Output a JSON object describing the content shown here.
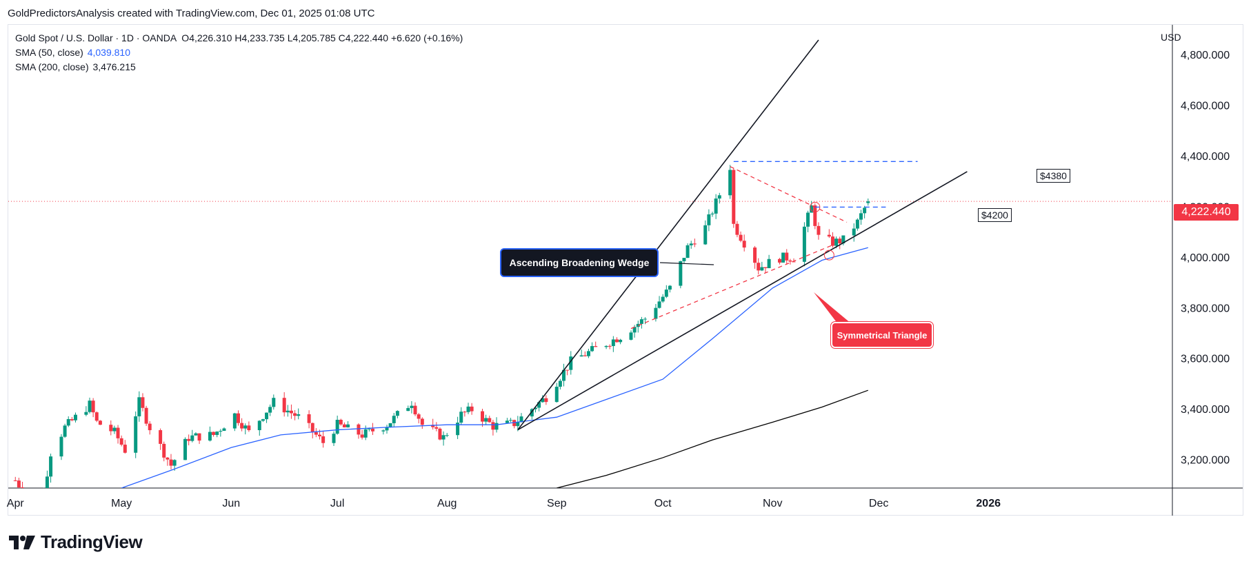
{
  "caption": "GoldPredictorsAnalysis created with TradingView.com, Dec 01, 2025 01:08 UTC",
  "legend": {
    "symbol": "Gold Spot / U.S. Dollar · 1D · OANDA",
    "open_label": "O",
    "open": "4,226.310",
    "high_label": "H",
    "high": "4,233.735",
    "low_label": "L",
    "low": "4,205.785",
    "close_label": "C",
    "close": "4,222.440",
    "change": "+6.620 (+0.16%)",
    "sma50_label": "SMA (50, close)",
    "sma50_value": "4,039.810",
    "sma200_label": "SMA (200, close)",
    "sma200_value": "3,476.215"
  },
  "currency": "USD",
  "last_price_label": "4,222.440",
  "annotations": {
    "wedge": "Ascending Broadening Wedge",
    "triangle": "Symmetrical Triangle",
    "target_high": "$4380",
    "target_mid": "$4200"
  },
  "brand": "TradingView",
  "colors": {
    "up": "#089981",
    "down": "#f23645",
    "sma50": "#2962ff",
    "sma200": "#000000",
    "dashed_blue": "#2962ff",
    "dashed_red": "#f23645"
  },
  "chart_data": {
    "type": "candlestick",
    "title": "Gold Spot / U.S. Dollar · 1D · OANDA",
    "x_tick_labels": [
      "Apr",
      "May",
      "Jun",
      "Jul",
      "Aug",
      "Sep",
      "Oct",
      "Nov",
      "Dec",
      "2026"
    ],
    "x_ticks": [
      "2025-04-01",
      "2025-05-01",
      "2025-06-01",
      "2025-07-01",
      "2025-08-01",
      "2025-09-01",
      "2025-10-01",
      "2025-11-01",
      "2025-12-01",
      "2026-01-01"
    ],
    "y_tick_labels": [
      "3,200.000",
      "3,400.000",
      "3,600.000",
      "3,800.000",
      "4,000.000",
      "4,200.000",
      "4,400.000",
      "4,600.000",
      "4,800.000"
    ],
    "y_ticks": [
      3200,
      3400,
      3600,
      3800,
      4000,
      4200,
      4400,
      4600,
      4800
    ],
    "ylim": [
      3090,
      4920
    ],
    "xlim": [
      "2025-03-30",
      "2026-02-22"
    ],
    "series_close": [
      [
        "2025-04-01",
        3120
      ],
      [
        "2025-04-08",
        3000
      ],
      [
        "2025-04-11",
        3230
      ],
      [
        "2025-04-15",
        3330
      ],
      [
        "2025-04-22",
        3420
      ],
      [
        "2025-04-24",
        3350
      ],
      [
        "2025-04-29",
        3310
      ],
      [
        "2025-05-02",
        3240
      ],
      [
        "2025-05-06",
        3430
      ],
      [
        "2025-05-09",
        3330
      ],
      [
        "2025-05-15",
        3180
      ],
      [
        "2025-05-20",
        3290
      ],
      [
        "2025-05-27",
        3300
      ],
      [
        "2025-06-02",
        3380
      ],
      [
        "2025-06-06",
        3310
      ],
      [
        "2025-06-13",
        3430
      ],
      [
        "2025-06-20",
        3370
      ],
      [
        "2025-06-27",
        3270
      ],
      [
        "2025-07-01",
        3340
      ],
      [
        "2025-07-08",
        3300
      ],
      [
        "2025-07-15",
        3340
      ],
      [
        "2025-07-22",
        3430
      ],
      [
        "2025-07-25",
        3340
      ],
      [
        "2025-07-31",
        3290
      ],
      [
        "2025-08-05",
        3380
      ],
      [
        "2025-08-08",
        3400
      ],
      [
        "2025-08-14",
        3335
      ],
      [
        "2025-08-20",
        3345
      ],
      [
        "2025-08-29",
        3450
      ],
      [
        "2025-09-05",
        3590
      ],
      [
        "2025-09-12",
        3640
      ],
      [
        "2025-09-19",
        3690
      ],
      [
        "2025-09-26",
        3760
      ],
      [
        "2025-10-03",
        3880
      ],
      [
        "2025-10-08",
        4040
      ],
      [
        "2025-10-13",
        4120
      ],
      [
        "2025-10-17",
        4250
      ],
      [
        "2025-10-20",
        4360
      ],
      [
        "2025-10-21",
        4130
      ],
      [
        "2025-10-27",
        3990
      ],
      [
        "2025-10-28",
        3960
      ],
      [
        "2025-11-03",
        4000
      ],
      [
        "2025-11-07",
        4000
      ],
      [
        "2025-11-12",
        4200
      ],
      [
        "2025-11-14",
        4080
      ],
      [
        "2025-11-18",
        4060
      ],
      [
        "2025-11-21",
        4070
      ],
      [
        "2025-11-25",
        4140
      ],
      [
        "2025-11-28",
        4222.44
      ]
    ],
    "sma50": [
      [
        "2025-05-01",
        3090
      ],
      [
        "2025-05-15",
        3160
      ],
      [
        "2025-06-01",
        3250
      ],
      [
        "2025-06-15",
        3300
      ],
      [
        "2025-07-01",
        3320
      ],
      [
        "2025-07-15",
        3330
      ],
      [
        "2025-08-01",
        3340
      ],
      [
        "2025-08-15",
        3340
      ],
      [
        "2025-09-01",
        3370
      ],
      [
        "2025-09-15",
        3440
      ],
      [
        "2025-10-01",
        3520
      ],
      [
        "2025-10-15",
        3680
      ],
      [
        "2025-11-01",
        3880
      ],
      [
        "2025-11-15",
        3990
      ],
      [
        "2025-11-28",
        4039.81
      ]
    ],
    "sma200": [
      [
        "2025-09-01",
        3090
      ],
      [
        "2025-09-15",
        3140
      ],
      [
        "2025-10-01",
        3210
      ],
      [
        "2025-10-15",
        3280
      ],
      [
        "2025-11-01",
        3350
      ],
      [
        "2025-11-15",
        3410
      ],
      [
        "2025-11-28",
        3476.215
      ]
    ],
    "levels": [
      4380,
      4200
    ],
    "last_price": 4222.44
  }
}
